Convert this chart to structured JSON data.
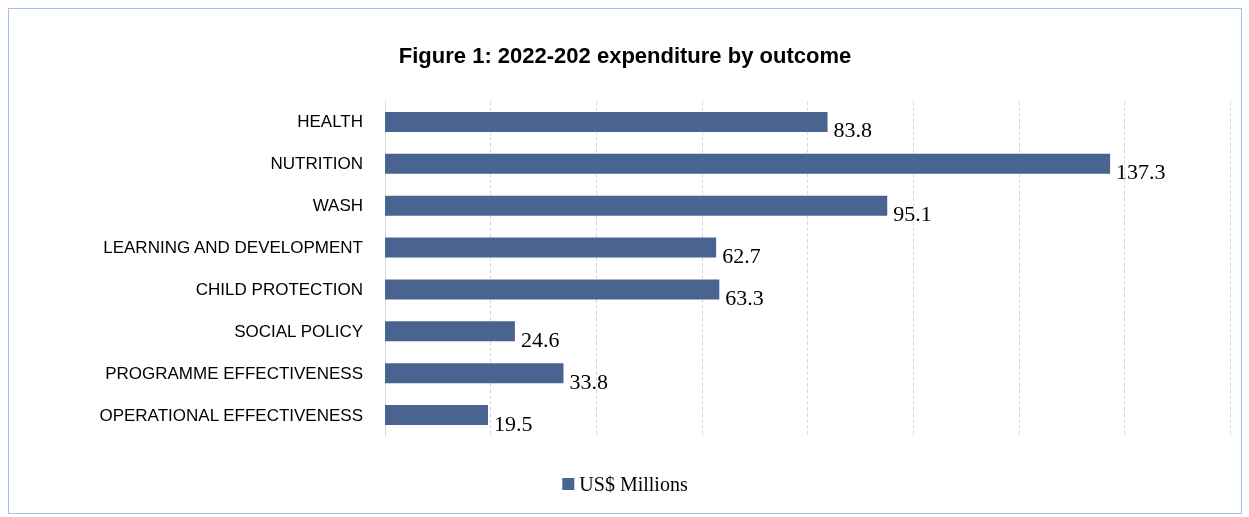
{
  "chart_data": {
    "type": "bar",
    "title": "Figure 1: 2022-202 expenditure by outcome",
    "orientation": "horizontal",
    "categories": [
      "HEALTH",
      "NUTRITION",
      "WASH",
      "LEARNING AND DEVELOPMENT",
      "CHILD PROTECTION",
      "SOCIAL POLICY",
      "PROGRAMME EFFECTIVENESS",
      "OPERATIONAL EFFECTIVENESS"
    ],
    "series": [
      {
        "name": "US$ Millions",
        "color": "#4a6491",
        "values": [
          83.8,
          137.3,
          95.1,
          62.7,
          63.3,
          24.6,
          33.8,
          19.5
        ]
      }
    ],
    "xlim": [
      0,
      160
    ],
    "xticks": [
      {
        "value": 0,
        "label": null
      },
      {
        "value": 20,
        "label": null
      },
      {
        "value": 40,
        "label": null
      },
      {
        "value": 60,
        "label": null
      },
      {
        "value": 80,
        "label": null
      },
      {
        "value": 100,
        "label": null
      },
      {
        "value": 120,
        "label": null
      },
      {
        "value": 140,
        "label": null
      },
      {
        "value": 160,
        "label": null
      }
    ],
    "tick_labels": "y",
    "grid": "x",
    "legend": "bottom",
    "data_labels": true
  }
}
